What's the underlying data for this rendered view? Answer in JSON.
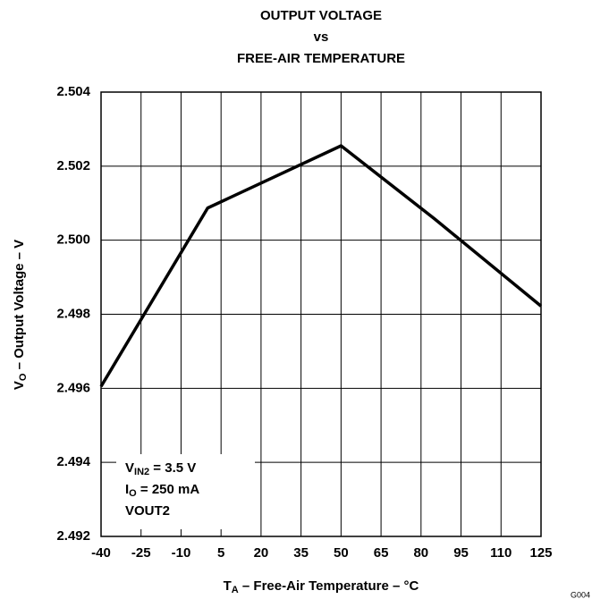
{
  "chart_data": {
    "type": "line",
    "title": [
      "OUTPUT VOLTAGE",
      "vs",
      "FREE-AIR TEMPERATURE"
    ],
    "x_label": {
      "main": "T",
      "sub": "A",
      "rest": " – Free-Air Temperature – °C"
    },
    "y_label": {
      "main": "V",
      "sub": "O",
      "rest": " – Output Voltage – V"
    },
    "annotation": [
      {
        "main": "V",
        "sub": "IN2",
        "rest": " = 3.5 V"
      },
      {
        "main": "I",
        "sub": "O",
        "rest": " = 250 mA"
      },
      {
        "main": "VOUT2"
      }
    ],
    "figure_id": "G004",
    "x": [
      -40,
      0,
      50,
      85,
      125
    ],
    "series": [
      {
        "color": "#000000",
        "values": [
          2.49605,
          2.50087,
          2.50255,
          2.50058,
          2.49822
        ]
      }
    ],
    "xlim": [
      -40,
      125
    ],
    "xticks": [
      -40,
      -25,
      -10,
      5,
      20,
      35,
      50,
      65,
      80,
      95,
      110,
      125
    ],
    "ylim": [
      2.492,
      2.504
    ],
    "yticks": [
      2.492,
      2.494,
      2.496,
      2.498,
      {
        "value": 2.5,
        "label": "2.500"
      },
      2.502,
      2.504
    ],
    "grid": true
  }
}
